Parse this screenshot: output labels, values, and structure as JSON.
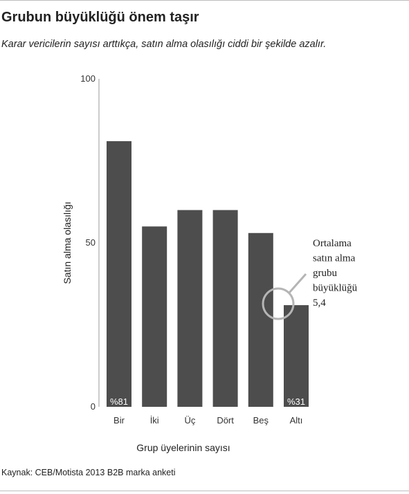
{
  "title": "Grubun büyüklüğü önem taşır",
  "subtitle": "Karar vericilerin sayısı arttıkça, satın alma olasılığı ciddi bir şekilde azalır.",
  "source": "Kaynak: CEB/Motista 2013 B2B marka anketi",
  "colors": {
    "bar": "#4d4d4d",
    "axis": "#999999",
    "circle": "#b5b5b5"
  },
  "chart_data": {
    "type": "bar",
    "categories": [
      "Bir",
      "İki",
      "Üç",
      "Dört",
      "Beş",
      "Altı"
    ],
    "values": [
      81,
      55,
      60,
      60,
      53,
      31
    ],
    "data_labels": [
      "%81",
      "",
      "",
      "",
      "",
      "%31"
    ],
    "ylabel": "Satın alma olasılığı",
    "xlabel": "Grup üyelerinin sayısı",
    "ylim": [
      0,
      100
    ],
    "yticks": [
      0,
      50,
      100
    ],
    "annotation": [
      "Ortalama",
      "satın alma",
      "grubu",
      "büyüklüğü",
      "5,4"
    ],
    "grid": false
  }
}
